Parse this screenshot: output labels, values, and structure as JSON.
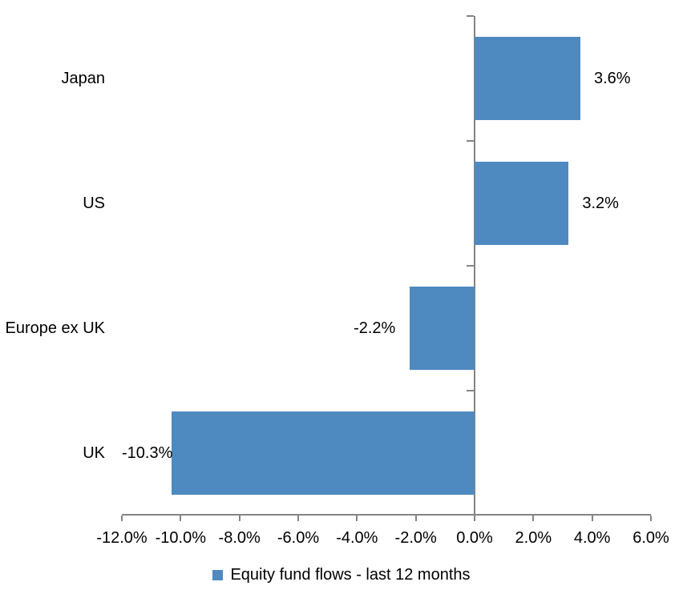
{
  "chart_data": {
    "type": "bar",
    "orientation": "horizontal",
    "title": "",
    "categories": [
      "Japan",
      "US",
      "Europe ex UK",
      "UK"
    ],
    "values": [
      3.6,
      3.2,
      -2.2,
      -10.3
    ],
    "value_labels": [
      "3.6%",
      "3.2%",
      "-2.2%",
      "-10.3%"
    ],
    "series_name": "Equity fund flows - last 12 months",
    "xlim": [
      -12,
      6
    ],
    "x_ticks": [
      -12,
      -10,
      -8,
      -6,
      -4,
      -2,
      0,
      2,
      4,
      6
    ],
    "x_tick_labels": [
      "-12.0%",
      "-10.0%",
      "-8.0%",
      "-6.0%",
      "-4.0%",
      "-2.0%",
      "0.0%",
      "2.0%",
      "4.0%",
      "6.0%"
    ],
    "bar_color": "#4E8ABF",
    "axis_color": "#848484",
    "text_color": "#000000",
    "legend_position": "bottom",
    "grid": false,
    "ylabel": "",
    "xlabel": ""
  }
}
